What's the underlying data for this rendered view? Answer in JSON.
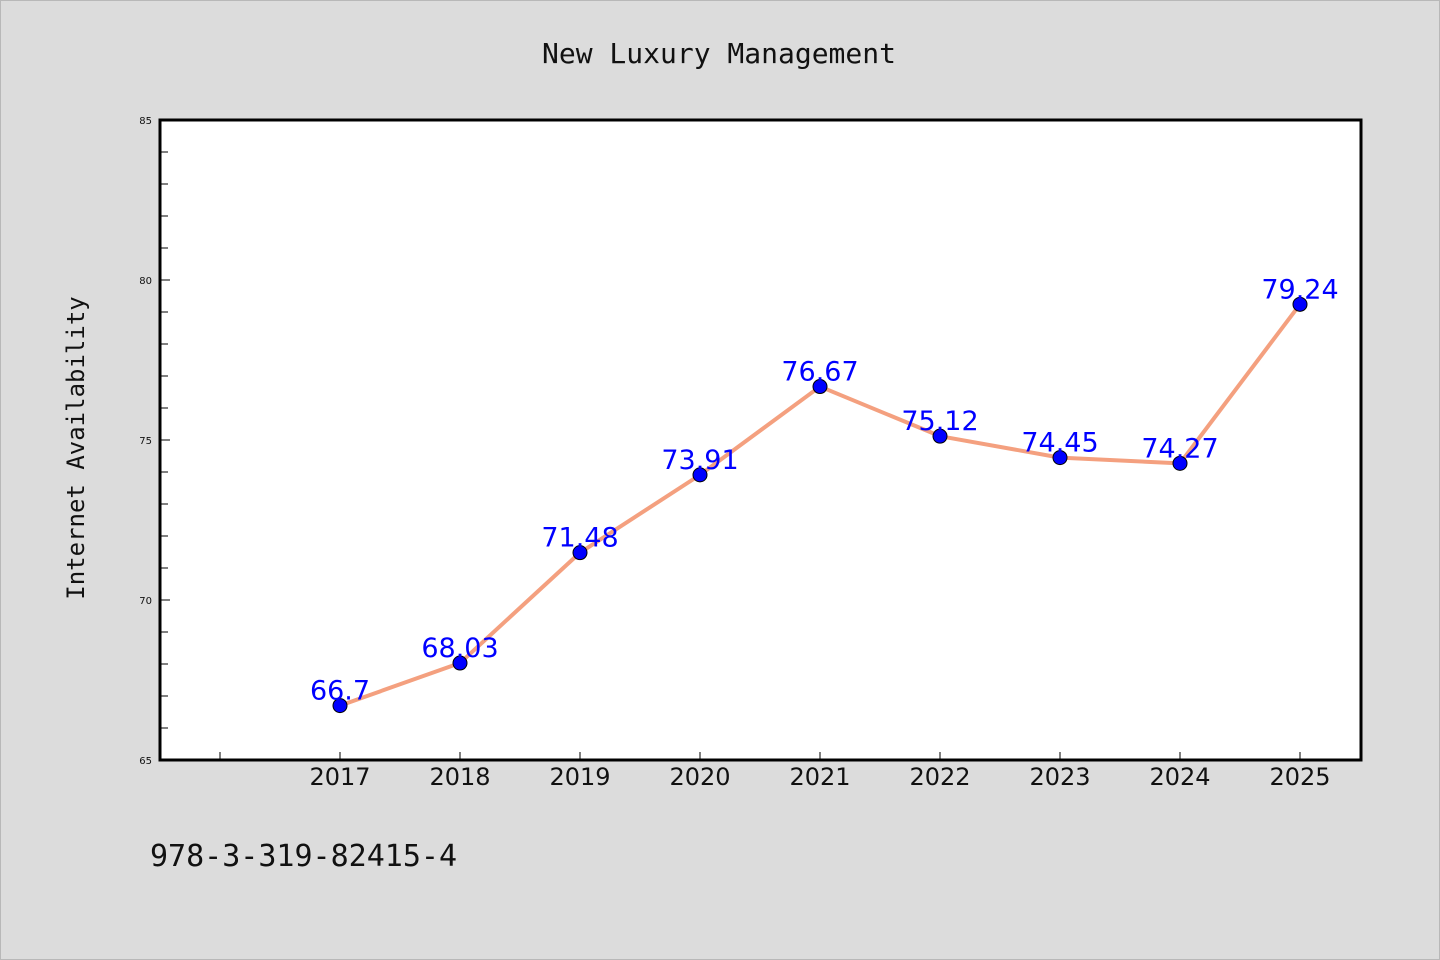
{
  "chart_data": {
    "type": "line",
    "title": "New Luxury Management",
    "xlabel": "",
    "ylabel": "Internet Availability",
    "categories": [
      "2017",
      "2018",
      "2019",
      "2020",
      "2021",
      "2022",
      "2023",
      "2024",
      "2025"
    ],
    "series": [
      {
        "values": [
          66.7,
          68.03,
          71.48,
          73.91,
          76.67,
          75.12,
          74.45,
          74.27,
          79.24
        ],
        "line_color": "#f4a07f",
        "marker_color": "#0000ff",
        "label_color": "#0000ff"
      }
    ],
    "data_labels": [
      "66.7",
      "68.03",
      "71.48",
      "73.91",
      "76.67",
      "75.12",
      "74.45",
      "74.27",
      "79.24"
    ],
    "ylim": [
      65,
      85
    ],
    "yticks": [
      "65",
      "70",
      "75",
      "80",
      "85"
    ],
    "grid": false,
    "legend": "none"
  },
  "footer_text": "978-3-319-82415-4",
  "colors": {
    "background": "#dcdcdc",
    "plot_background": "#ffffff",
    "axis": "#000000"
  }
}
